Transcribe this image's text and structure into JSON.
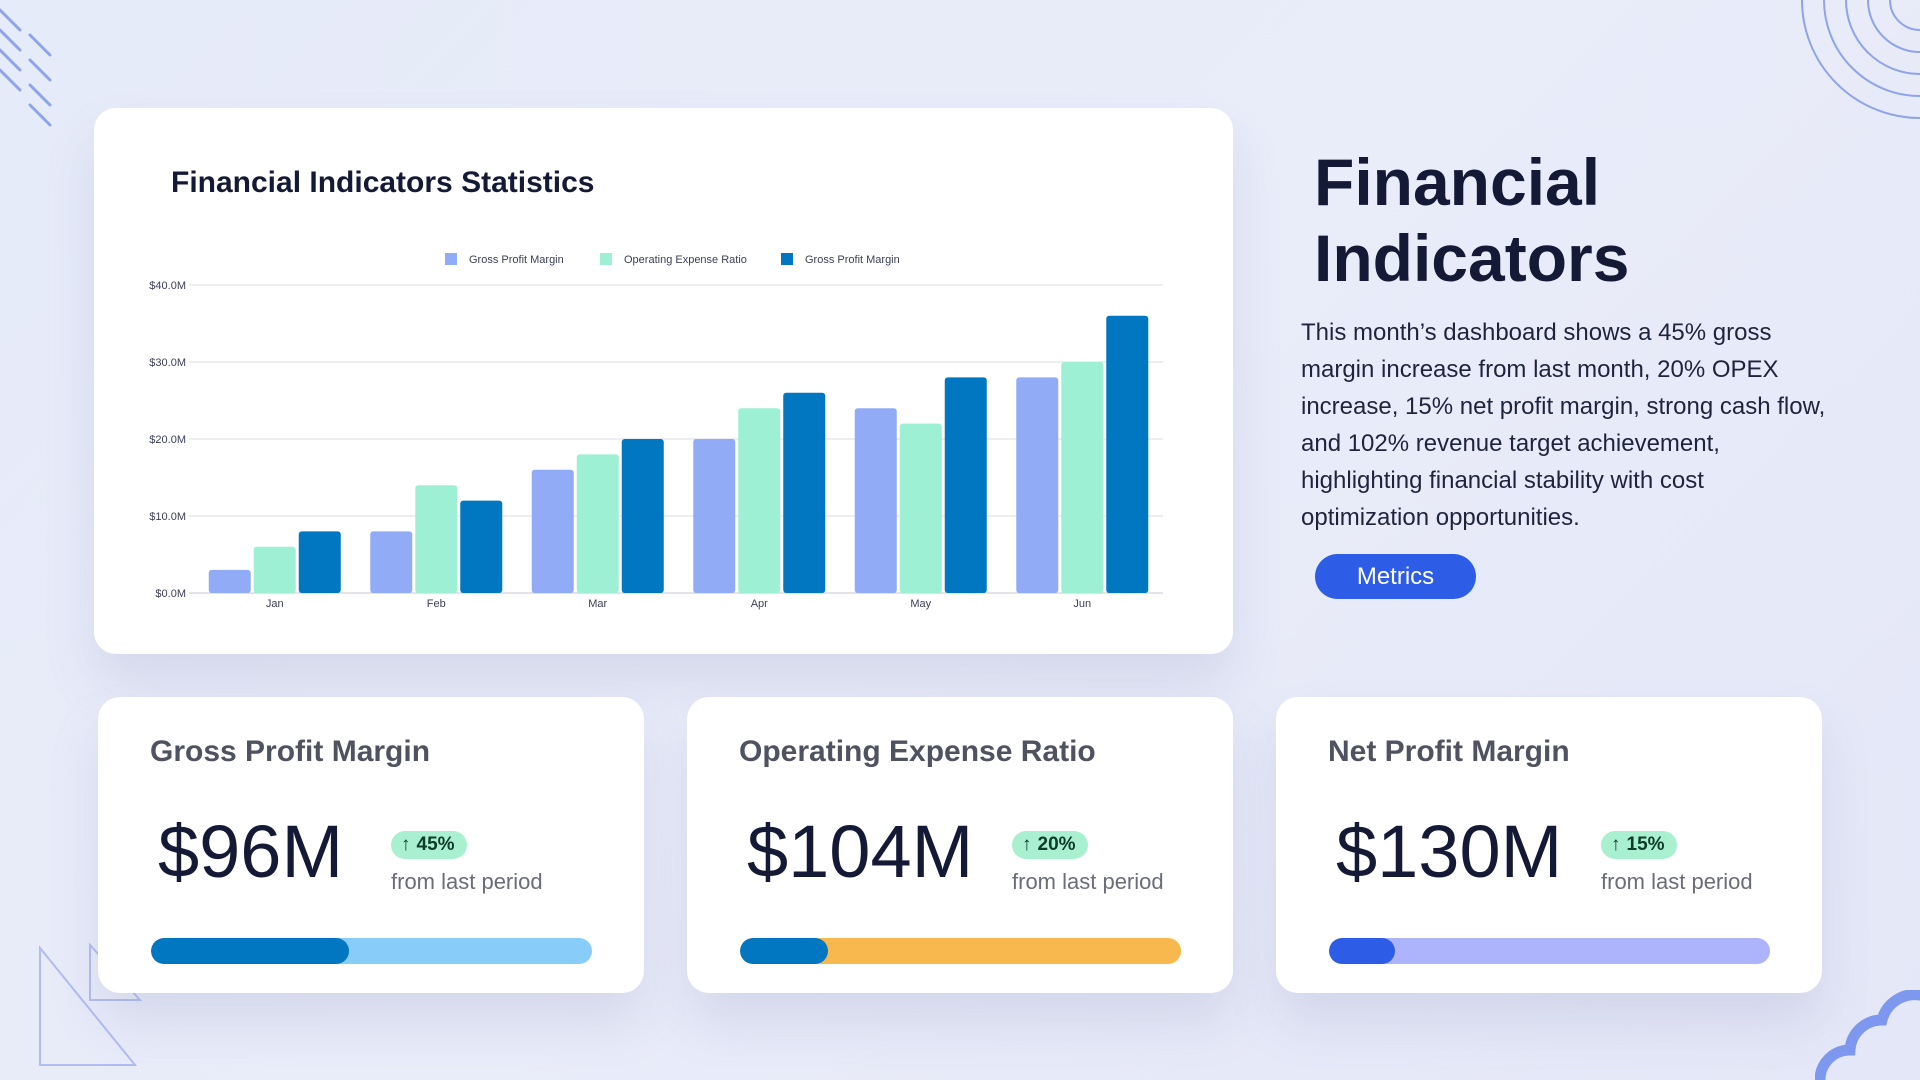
{
  "colors": {
    "gross_profit_margin": "#92abf7",
    "operating_expense_ratio": "#9ef0d4",
    "gross_profit_margin_2": "#0077c0",
    "accent_button": "#2d5de6",
    "badge_bg": "#a9f0d1"
  },
  "chart_data": {
    "type": "bar",
    "title": "Financial Indicators Statistics",
    "xlabel": "",
    "ylabel": "",
    "categories": [
      "Jan",
      "Feb",
      "Mar",
      "Apr",
      "May",
      "Jun"
    ],
    "series": [
      {
        "name": "Gross Profit Margin",
        "color": "#92abf7",
        "values": [
          3,
          8,
          16,
          20,
          24,
          28
        ]
      },
      {
        "name": "Operating Expense Ratio",
        "color": "#9ef0d4",
        "values": [
          6,
          14,
          18,
          24,
          22,
          30
        ]
      },
      {
        "name": "Gross Profit Margin",
        "color": "#0077c0",
        "values": [
          8,
          12,
          20,
          26,
          28,
          36
        ]
      }
    ],
    "ylim": [
      0,
      40
    ],
    "yticks": [
      0,
      10,
      20,
      30,
      40
    ],
    "ytick_labels": [
      "$0.0M",
      "$10.0M",
      "$20.0M",
      "$30.0M",
      "$40.0M"
    ],
    "grid": true,
    "legend_position": "top-center"
  },
  "hero": {
    "title": "Financial Indicators",
    "description": "This month’s dashboard shows a 45% gross margin increase from last month, 20% OPEX increase, 15% net profit margin, strong cash flow, and 102% revenue target achievement, highlighting financial stability with cost optimization opportunities.",
    "button_label": "Metrics"
  },
  "metrics": [
    {
      "title": "Gross Profit Margin",
      "value": "$96M",
      "change": "45%",
      "change_icon": "arrow-up-icon",
      "subtitle": "from last period",
      "progress": 0.45,
      "bar_color": "#0077c0",
      "track_color": "#88cdf9"
    },
    {
      "title": "Operating Expense Ratio",
      "value": "$104M",
      "change": "20%",
      "change_icon": "arrow-up-icon",
      "subtitle": "from last period",
      "progress": 0.2,
      "bar_color": "#0077c0",
      "track_color": "#f8b84e"
    },
    {
      "title": "Net Profit Margin",
      "value": "$130M",
      "change": "15%",
      "change_icon": "arrow-up-icon",
      "subtitle": "from last period",
      "progress": 0.15,
      "bar_color": "#2d5de6",
      "track_color": "#aeb4fb"
    }
  ]
}
